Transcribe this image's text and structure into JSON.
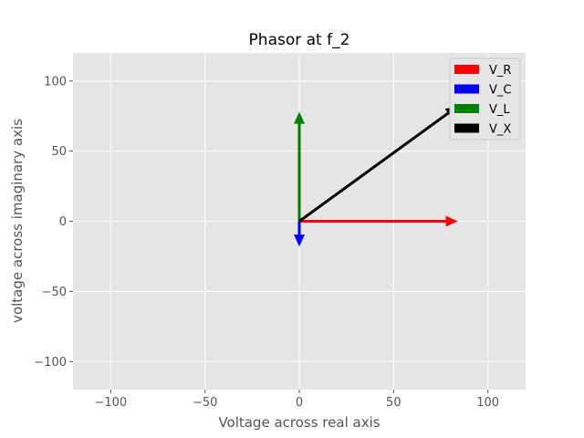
{
  "chart_data": {
    "type": "phasor",
    "title": "Phasor at f_2",
    "xlabel": "Voltage across real axis",
    "ylabel": "voltage across imaginary axis",
    "xlim": [
      -120,
      120
    ],
    "ylim": [
      -120,
      120
    ],
    "xticks": [
      -100,
      -50,
      0,
      50,
      100
    ],
    "yticks": [
      -100,
      -50,
      0,
      50,
      100
    ],
    "xtick_labels": [
      "−100",
      "−50",
      "0",
      "50",
      "100"
    ],
    "ytick_labels": [
      "−100",
      "−50",
      "0",
      "50",
      "100"
    ],
    "grid": true,
    "legend_position": "top-right",
    "background": "#e5e5e5",
    "series": [
      {
        "name": "V_R",
        "color": "#ff0000",
        "x": 84,
        "y": 0
      },
      {
        "name": "V_C",
        "color": "#0000ff",
        "x": 0,
        "y": -18
      },
      {
        "name": "V_L",
        "color": "#008000",
        "x": 0,
        "y": 78
      },
      {
        "name": "V_X",
        "color": "#000000",
        "x": 84,
        "y": 82
      }
    ]
  }
}
